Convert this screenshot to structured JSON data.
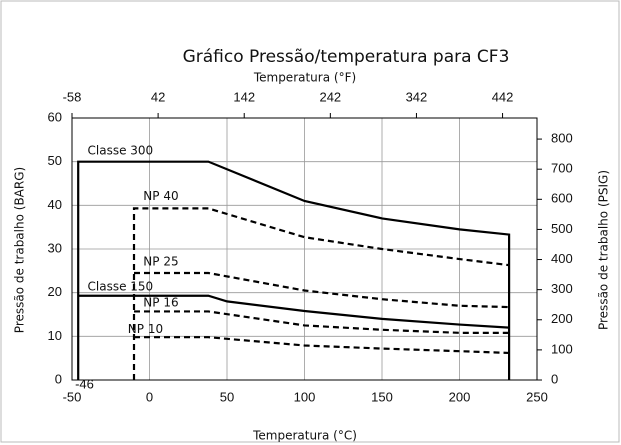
{
  "chart_data": {
    "type": "line",
    "title": "Gráfico Pressão/temperatura para CF3",
    "xlabel": "Temperatura (°C)",
    "x2label": "Temperatura (°F)",
    "ylabel": "Pressão de trabalho (BARG)",
    "y2label": "Pressão de trabalho (PSIG)",
    "xlim": [
      -50,
      250
    ],
    "xticks": [
      -50,
      0,
      50,
      100,
      150,
      200,
      250
    ],
    "x2lim": [
      -58,
      482
    ],
    "x2ticks": [
      -58,
      42,
      142,
      242,
      342,
      442
    ],
    "ylim": [
      0,
      60
    ],
    "yticks": [
      0,
      10,
      20,
      30,
      40,
      50,
      60
    ],
    "y2lim": [
      0,
      870
    ],
    "y2ticks": [
      0,
      100,
      200,
      300,
      400,
      500,
      600,
      700,
      800
    ],
    "grid": true,
    "annotations": [
      "-46"
    ],
    "series": [
      {
        "name": "Classe 300",
        "color": "#000000",
        "dash": false,
        "x": [
          -46,
          -46,
          38,
          100,
          150,
          200,
          232,
          232
        ],
        "values": [
          0,
          50,
          50,
          41,
          37,
          34.5,
          33.3,
          0
        ]
      },
      {
        "name": "NP 40",
        "color": "#000000",
        "dash": true,
        "x": [
          -10,
          -10,
          38,
          100,
          150,
          200,
          232
        ],
        "values": [
          0,
          39.3,
          39.3,
          32.7,
          30,
          27.7,
          26.3
        ]
      },
      {
        "name": "NP 25",
        "color": "#000000",
        "dash": true,
        "x": [
          -10,
          38,
          100,
          150,
          200,
          232
        ],
        "values": [
          24.5,
          24.5,
          20.5,
          18.5,
          17,
          16.7
        ]
      },
      {
        "name": "Classe 150",
        "color": "#000000",
        "dash": false,
        "x": [
          -46,
          38,
          50,
          100,
          150,
          200,
          232
        ],
        "values": [
          19.3,
          19.3,
          18,
          15.8,
          14,
          12.7,
          12
        ]
      },
      {
        "name": "NP 16",
        "color": "#000000",
        "dash": true,
        "x": [
          -10,
          38,
          100,
          150,
          200,
          232
        ],
        "values": [
          15.7,
          15.7,
          12.5,
          11.5,
          10.8,
          10.8
        ]
      },
      {
        "name": "NP 10",
        "color": "#000000",
        "dash": true,
        "x": [
          -10,
          38,
          100,
          150,
          200,
          232
        ],
        "values": [
          9.8,
          9.8,
          7.9,
          7.2,
          6.6,
          6.2
        ]
      }
    ]
  }
}
